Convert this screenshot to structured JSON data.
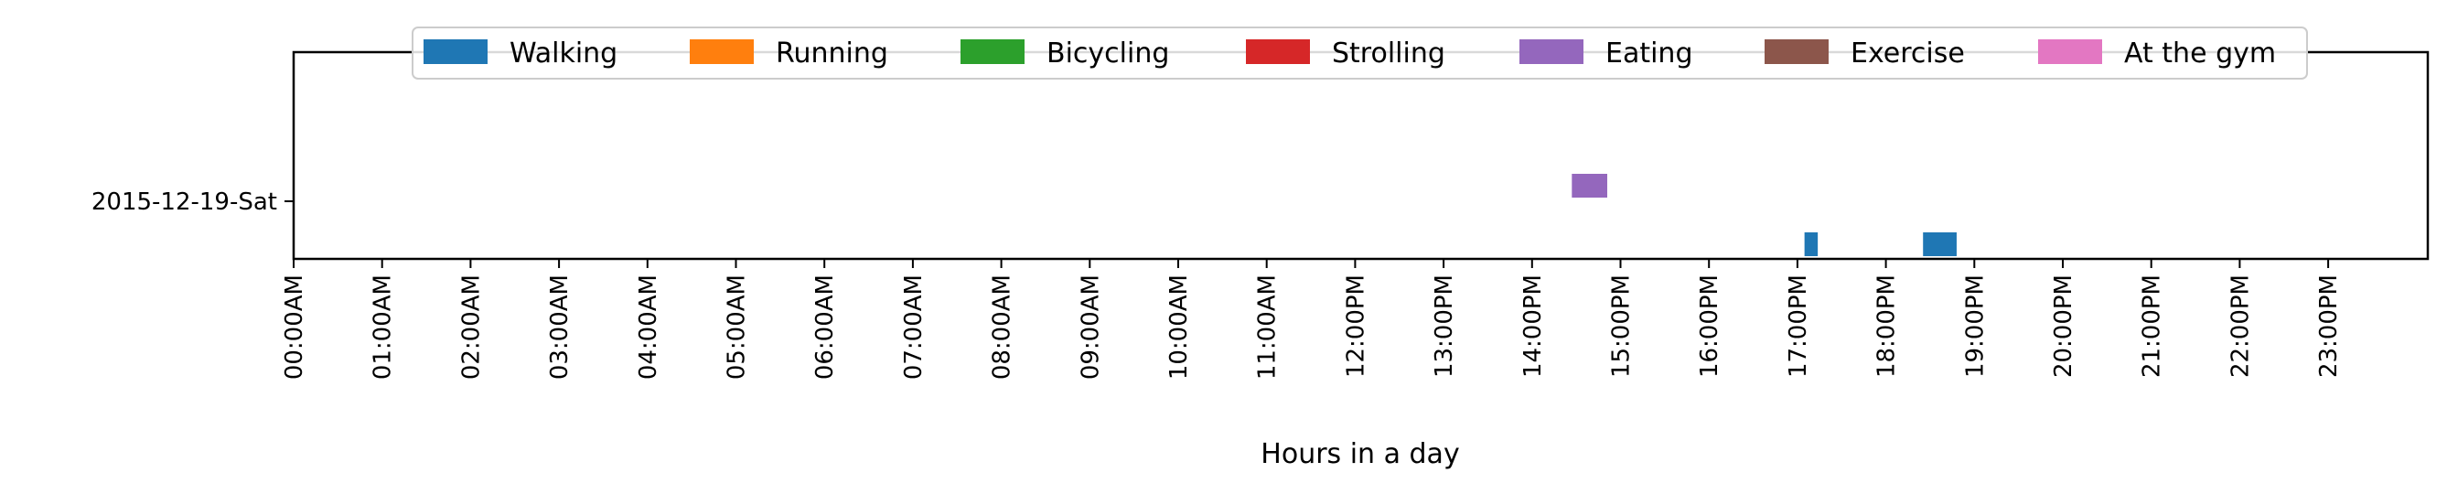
{
  "chart_data": {
    "type": "bar",
    "orientation": "horizontal-timeline",
    "title": "",
    "xlabel": "Hours in a day",
    "ylabel": "",
    "y_categories": [
      "2015-12-19-Sat"
    ],
    "xlim": [
      0,
      24
    ],
    "x_ticks": [
      "00:00AM",
      "01:00AM",
      "02:00AM",
      "03:00AM",
      "04:00AM",
      "05:00AM",
      "06:00AM",
      "07:00AM",
      "08:00AM",
      "09:00AM",
      "10:00AM",
      "11:00AM",
      "12:00PM",
      "13:00PM",
      "14:00PM",
      "15:00PM",
      "16:00PM",
      "17:00PM",
      "18:00PM",
      "19:00PM",
      "20:00PM",
      "21:00PM",
      "22:00PM",
      "23:00PM"
    ],
    "grid": false,
    "legend_position": "top-center",
    "series": [
      {
        "name": "Walking",
        "color": "#1f77b4",
        "intervals": [
          {
            "day": "2015-12-19-Sat",
            "start": 17.08,
            "end": 17.23
          },
          {
            "day": "2015-12-19-Sat",
            "start": 18.42,
            "end": 18.8
          }
        ]
      },
      {
        "name": "Running",
        "color": "#ff7f0e",
        "intervals": []
      },
      {
        "name": "Bicycling",
        "color": "#2ca02c",
        "intervals": []
      },
      {
        "name": "Strolling",
        "color": "#d62728",
        "intervals": []
      },
      {
        "name": "Eating",
        "color": "#9467bd",
        "intervals": [
          {
            "day": "2015-12-19-Sat",
            "start": 14.45,
            "end": 14.85
          }
        ]
      },
      {
        "name": "Exercise",
        "color": "#8c564b",
        "intervals": []
      },
      {
        "name": "At the gym",
        "color": "#e377c2",
        "intervals": []
      }
    ]
  }
}
